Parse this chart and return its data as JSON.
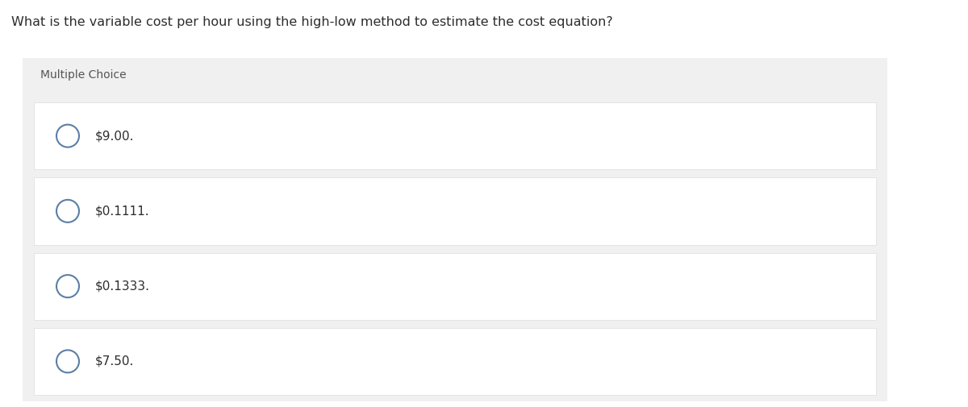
{
  "question": "What is the variable cost per hour using the high-low method to estimate the cost equation?",
  "section_label": "Multiple Choice",
  "choices": [
    "$9.00.",
    "$0.1111.",
    "$0.1333.",
    "$7.50."
  ],
  "bg_color": "#f0f0f0",
  "white_color": "#ffffff",
  "outer_bg": "#ffffff",
  "question_font_size": 11.5,
  "section_font_size": 10,
  "choice_font_size": 11,
  "text_color": "#2d2d2d",
  "section_text_color": "#555555",
  "circle_edge_color": "#5b7fa6",
  "circle_lw": 1.5,
  "border_color": "#dcdcdc"
}
